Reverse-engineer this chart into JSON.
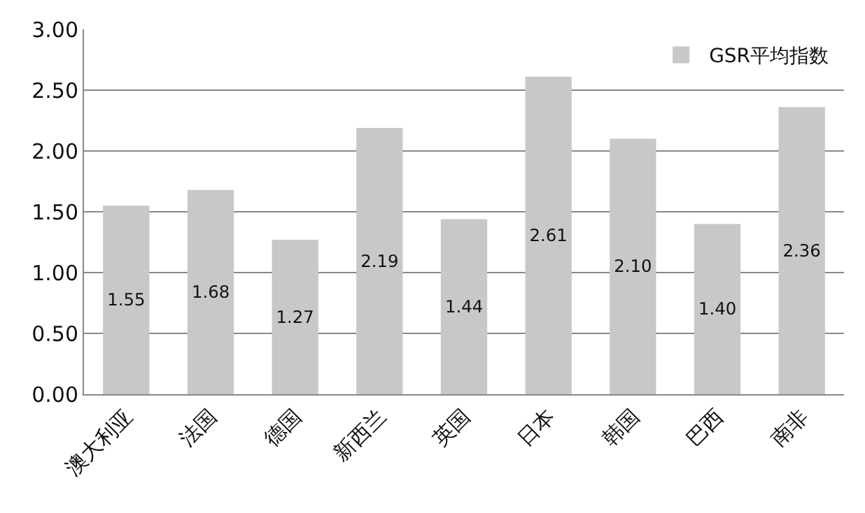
{
  "chart_data": {
    "type": "bar",
    "categories": [
      "澳大利亚",
      "法国",
      "德国",
      "新西兰",
      "英国",
      "日本",
      "韩国",
      "巴西",
      "南非"
    ],
    "series": [
      {
        "name": "GSR平均指数",
        "color": "#c8c8c8",
        "values": [
          1.55,
          1.68,
          1.27,
          2.19,
          1.44,
          2.61,
          2.1,
          1.4,
          2.36
        ],
        "value_labels": [
          "1.55",
          "1.68",
          "1.27",
          "2.19",
          "1.44",
          "2.61",
          "2.10",
          "1.40",
          "2.36"
        ]
      }
    ],
    "ylim": [
      0,
      3
    ],
    "yticks": [
      "0.00",
      "0.50",
      "1.00",
      "1.50",
      "2.00",
      "2.50",
      "3.00"
    ],
    "grid": "y",
    "legend": "top right"
  }
}
